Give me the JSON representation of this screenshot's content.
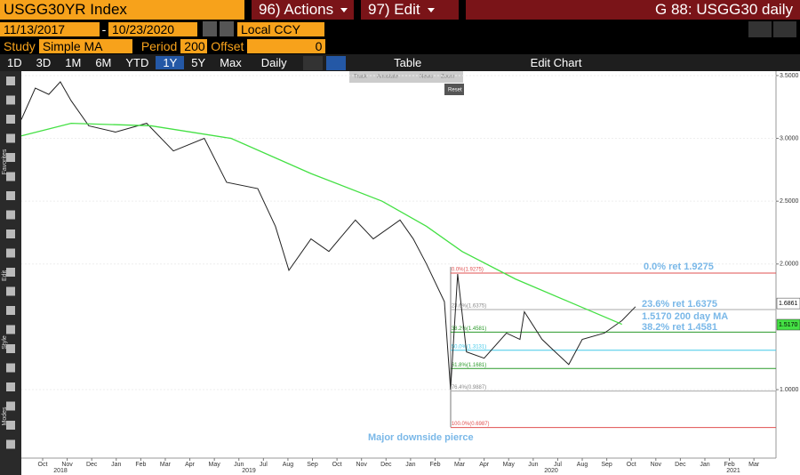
{
  "toolbar": {
    "ticker": "USGG30YR Index",
    "actions": "96) Actions",
    "edit": "97) Edit",
    "title": "G 88: USGG30 daily",
    "start_date": "11/13/2017",
    "date_separator": "-",
    "end_date": "10/23/2020",
    "currency": "Local CCY",
    "study_label": "Study",
    "study": "Simple MA",
    "period_label": "Period",
    "period": "200",
    "offset_label": "Offset",
    "offset": "0",
    "ranges": [
      "1D",
      "3D",
      "1M",
      "6M",
      "YTD",
      "1Y",
      "5Y",
      "Max"
    ],
    "active_range": "1Y",
    "frequency": "Daily",
    "table": "Table",
    "edit_chart": "Edit Chart",
    "mini": [
      "Track",
      "Annotate",
      "News",
      "Zoom",
      "Reset"
    ],
    "side": [
      "Favorites",
      "Edit",
      "Style",
      "Modes"
    ]
  },
  "chart_data": {
    "type": "line",
    "categories": [
      "Oct",
      "Nov",
      "Dec",
      "Jan",
      "Feb",
      "Mar",
      "Apr",
      "May",
      "Jun",
      "Jul",
      "Aug",
      "Sep",
      "Oct",
      "Nov",
      "Dec",
      "Jan",
      "Feb",
      "Mar",
      "Apr",
      "May",
      "Jun",
      "Jul",
      "Aug",
      "Sep",
      "Oct",
      "Nov",
      "Dec",
      "Jan",
      "Feb",
      "Mar"
    ],
    "years": [
      "2018",
      "2019",
      "2020",
      "2021"
    ],
    "xlim": [
      -0.87,
      29.9
    ],
    "ylim": [
      0.455,
      3.535
    ],
    "yticks": [
      {
        "value": 1,
        "label": "1.0000"
      },
      {
        "value": 2,
        "label": "2.0000"
      },
      {
        "value": 2.5,
        "label": "2.5000"
      },
      {
        "value": 3,
        "label": "3.0000"
      },
      {
        "value": 3.5,
        "label": "3.5000"
      }
    ],
    "grid": true,
    "series": [
      {
        "color": "#222222",
        "x": [
          -0.87,
          -0.3,
          0.25,
          0.72,
          1.16,
          1.88,
          2.97,
          4.24,
          5.33,
          6.59,
          7.5,
          8.77,
          9.49,
          10.04,
          10.94,
          11.67,
          12.75,
          13.48,
          14.57,
          15.11,
          15.65,
          16.38,
          16.63,
          16.92,
          17.28,
          18.0,
          18.91,
          19.46,
          19.64,
          20.36,
          20.9,
          21.45,
          22.0,
          22.9,
          23.62,
          24.17
        ],
        "values": [
          3.15,
          3.4,
          3.35,
          3.45,
          3.3,
          3.1,
          3.05,
          3.12,
          2.9,
          3.0,
          2.65,
          2.6,
          2.3,
          1.95,
          2.2,
          2.1,
          2.35,
          2.2,
          2.35,
          2.2,
          2.0,
          1.7,
          1.0,
          1.92,
          1.3,
          1.25,
          1.45,
          1.4,
          1.62,
          1.4,
          1.3,
          1.2,
          1.4,
          1.45,
          1.55,
          1.66
        ]
      },
      {
        "color": "#44e044",
        "x": [
          -0.87,
          1.16,
          4.42,
          7.68,
          10.94,
          13.84,
          15.65,
          17.1,
          19.28,
          21.45,
          23.62
        ],
        "values": [
          3.02,
          3.12,
          3.1,
          3.0,
          2.72,
          2.5,
          2.3,
          2.1,
          1.88,
          1.7,
          1.52
        ]
      }
    ],
    "retracements": [
      {
        "label": "0.0%(1.9275)",
        "value": 1.9275,
        "color": "#e05050"
      },
      {
        "label": "23.6%(1.6375)",
        "value": 1.6375,
        "color": "#aaaaaa"
      },
      {
        "label": "38.2%(1.4581)",
        "value": 1.4581,
        "color": "#2a9a2a"
      },
      {
        "label": "50.0%(1.3131)",
        "value": 1.3131,
        "color": "#40c8e8"
      },
      {
        "label": "61.8%(1.1681)",
        "value": 1.1681,
        "color": "#2a9a2a"
      },
      {
        "label": "76.4%(0.9887)",
        "value": 0.9887,
        "color": "#aaaaaa"
      },
      {
        "label": "100.0%(0.6987)",
        "value": 0.6987,
        "color": "#e05050"
      }
    ],
    "retracement_start": 16.63,
    "annotations": [
      "0.0% ret 1.9275",
      "23.6% ret 1.6375",
      "1.5170 200 day MA",
      "38.2% ret 1.4581",
      "Major downside pierce"
    ],
    "price_tags": [
      {
        "value": 1.6861,
        "label": "1.6861",
        "color": "#ffffff"
      },
      {
        "value": 1.517,
        "label": "1.5170",
        "color": "#44e044"
      }
    ]
  }
}
